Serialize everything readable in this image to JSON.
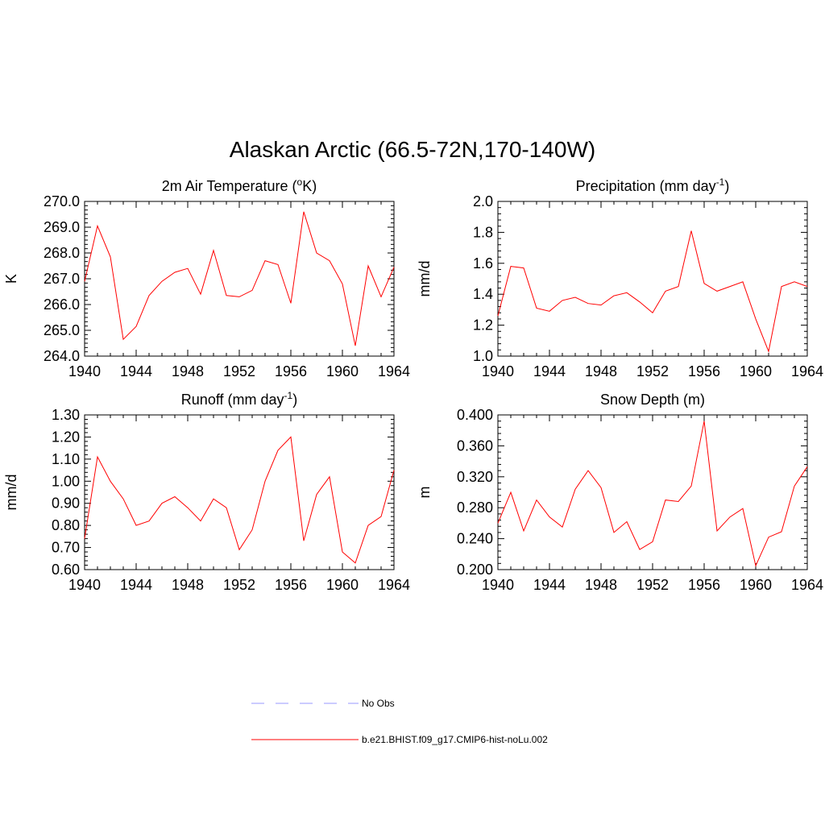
{
  "figure": {
    "title": "Alaskan Arctic (66.5-72N,170-140W)"
  },
  "legend": {
    "placement": "bottom-center",
    "entries": [
      {
        "label": "No Obs",
        "color": "#9999ff",
        "dash": "dashed"
      },
      {
        "label": "b.e21.BHIST.f09_g17.CMIP6-hist-noLu.002",
        "color": "#ff0000",
        "dash": "solid"
      }
    ]
  },
  "chart_data": [
    {
      "type": "line",
      "title_main": "2m Air Temperature (",
      "title_sup": "o",
      "title_tail": "K)",
      "ylabel": "K",
      "xlim": [
        1940,
        1964
      ],
      "ylim": [
        264.0,
        270.0
      ],
      "xticks": [
        1940,
        1944,
        1948,
        1952,
        1956,
        1960,
        1964
      ],
      "yticks": [
        "264.0",
        "265.0",
        "266.0",
        "267.0",
        "268.0",
        "269.0",
        "270.0"
      ],
      "yminor": 5,
      "series": [
        {
          "name": "b.e21.BHIST.f09_g17.CMIP6-hist-noLu.002",
          "color": "#ff0000",
          "x": [
            1940,
            1941,
            1942,
            1943,
            1944,
            1945,
            1946,
            1947,
            1948,
            1949,
            1950,
            1951,
            1952,
            1953,
            1954,
            1955,
            1956,
            1957,
            1958,
            1959,
            1960,
            1961,
            1962,
            1963,
            1964
          ],
          "y": [
            266.9,
            269.05,
            267.85,
            264.65,
            265.15,
            266.35,
            266.9,
            267.25,
            267.4,
            266.4,
            268.1,
            266.35,
            266.3,
            266.55,
            267.7,
            267.55,
            266.05,
            269.6,
            268.0,
            267.7,
            266.8,
            264.4,
            267.5,
            266.3,
            267.45
          ]
        }
      ]
    },
    {
      "type": "line",
      "title_main": "Precipitation (mm day",
      "title_sup": "-1",
      "title_tail": ")",
      "ylabel": "mm/d",
      "xlim": [
        1940,
        1964
      ],
      "ylim": [
        1.0,
        2.0
      ],
      "xticks": [
        1940,
        1944,
        1948,
        1952,
        1956,
        1960,
        1964
      ],
      "yticks": [
        "1.0",
        "1.2",
        "1.4",
        "1.6",
        "1.8",
        "2.0"
      ],
      "yminor": 4,
      "series": [
        {
          "name": "b.e21.BHIST.f09_g17.CMIP6-hist-noLu.002",
          "color": "#ff0000",
          "x": [
            1940,
            1941,
            1942,
            1943,
            1944,
            1945,
            1946,
            1947,
            1948,
            1949,
            1950,
            1951,
            1952,
            1953,
            1954,
            1955,
            1956,
            1957,
            1958,
            1959,
            1960,
            1961,
            1962,
            1963,
            1964
          ],
          "y": [
            1.26,
            1.58,
            1.57,
            1.31,
            1.29,
            1.36,
            1.38,
            1.34,
            1.33,
            1.39,
            1.41,
            1.35,
            1.28,
            1.42,
            1.45,
            1.81,
            1.47,
            1.42,
            1.45,
            1.48,
            1.24,
            1.03,
            1.45,
            1.48,
            1.45
          ]
        }
      ]
    },
    {
      "type": "line",
      "title_main": "Runoff (mm day",
      "title_sup": "-1",
      "title_tail": ")",
      "ylabel": "mm/d",
      "xlim": [
        1940,
        1964
      ],
      "ylim": [
        0.6,
        1.3
      ],
      "xticks": [
        1940,
        1944,
        1948,
        1952,
        1956,
        1960,
        1964
      ],
      "yticks": [
        "0.60",
        "0.70",
        "0.80",
        "0.90",
        "1.00",
        "1.10",
        "1.20",
        "1.30"
      ],
      "yminor": 4,
      "series": [
        {
          "name": "b.e21.BHIST.f09_g17.CMIP6-hist-noLu.002",
          "color": "#ff0000",
          "x": [
            1940,
            1941,
            1942,
            1943,
            1944,
            1945,
            1946,
            1947,
            1948,
            1949,
            1950,
            1951,
            1952,
            1953,
            1954,
            1955,
            1956,
            1957,
            1958,
            1959,
            1960,
            1961,
            1962,
            1963,
            1964
          ],
          "y": [
            0.74,
            1.11,
            1.0,
            0.92,
            0.8,
            0.82,
            0.9,
            0.93,
            0.88,
            0.82,
            0.92,
            0.88,
            0.69,
            0.78,
            1.0,
            1.14,
            1.2,
            0.73,
            0.94,
            1.02,
            0.68,
            0.63,
            0.8,
            0.84,
            1.05
          ]
        }
      ]
    },
    {
      "type": "line",
      "title_main": "Snow Depth (m)",
      "title_sup": "",
      "title_tail": "",
      "ylabel": "m",
      "xlim": [
        1940,
        1964
      ],
      "ylim": [
        0.2,
        0.4
      ],
      "xticks": [
        1940,
        1944,
        1948,
        1952,
        1956,
        1960,
        1964
      ],
      "yticks": [
        "0.200",
        "0.240",
        "0.280",
        "0.320",
        "0.360",
        "0.400"
      ],
      "yminor": 4,
      "series": [
        {
          "name": "b.e21.BHIST.f09_g17.CMIP6-hist-noLu.002",
          "color": "#ff0000",
          "x": [
            1940,
            1941,
            1942,
            1943,
            1944,
            1945,
            1946,
            1947,
            1948,
            1949,
            1950,
            1951,
            1952,
            1953,
            1954,
            1955,
            1956,
            1957,
            1958,
            1959,
            1960,
            1961,
            1962,
            1963,
            1964
          ],
          "y": [
            0.26,
            0.3,
            0.25,
            0.29,
            0.268,
            0.255,
            0.304,
            0.328,
            0.306,
            0.248,
            0.262,
            0.226,
            0.236,
            0.29,
            0.288,
            0.308,
            0.392,
            0.25,
            0.268,
            0.279,
            0.205,
            0.242,
            0.249,
            0.308,
            0.333
          ]
        }
      ]
    }
  ]
}
